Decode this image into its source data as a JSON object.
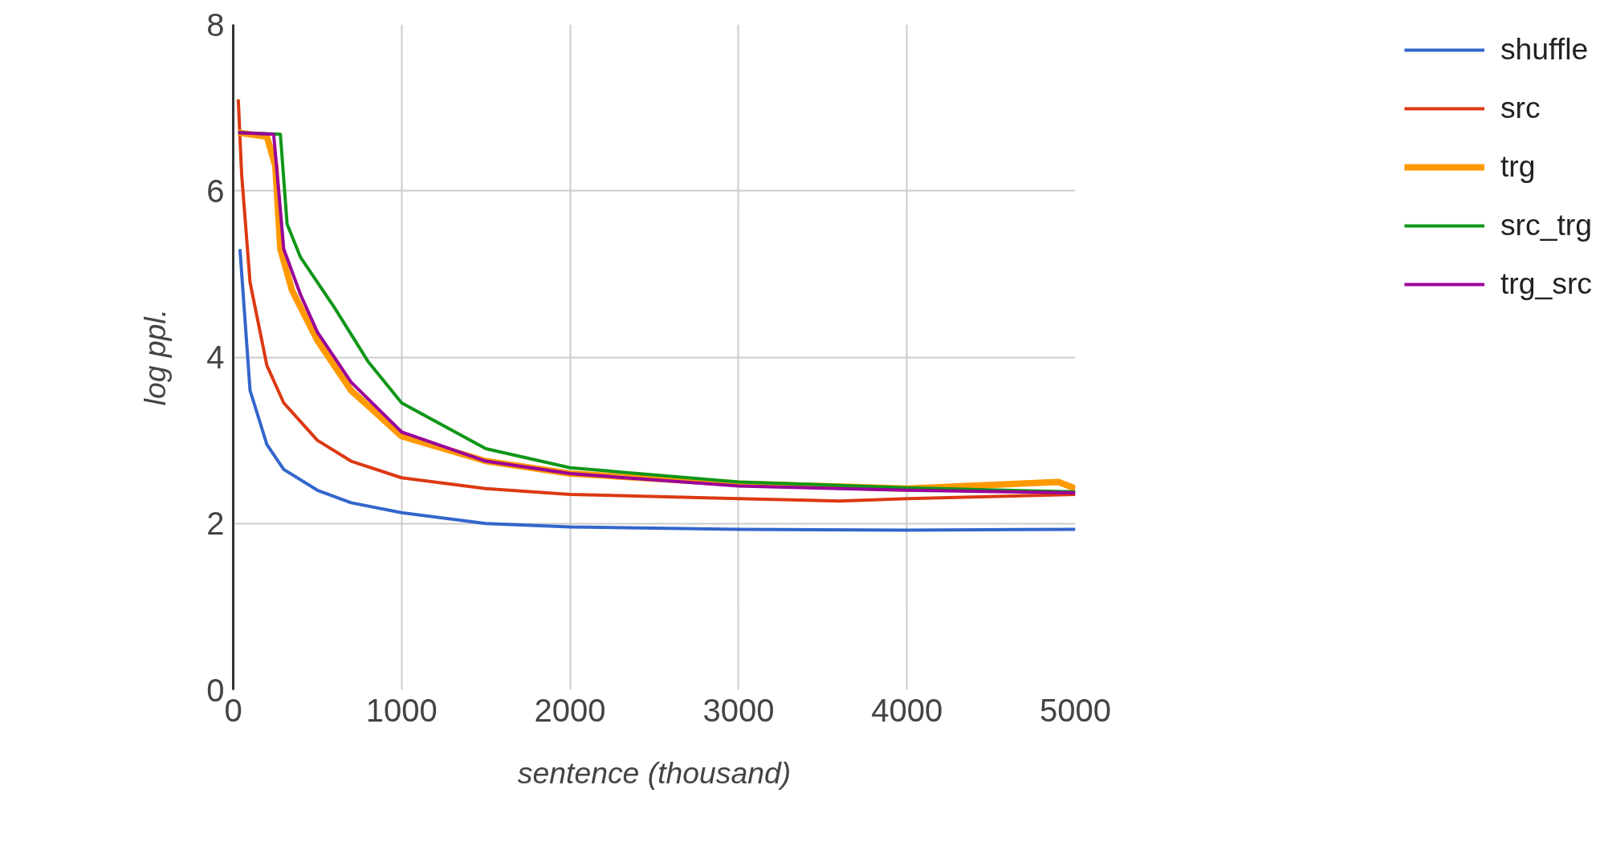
{
  "chart_data": {
    "type": "line",
    "xlabel": "sentence (thousand)",
    "ylabel": "log ppl.",
    "xlim": [
      0,
      5000
    ],
    "ylim": [
      0,
      8
    ],
    "xticks": [
      0,
      1000,
      2000,
      3000,
      4000,
      5000
    ],
    "yticks": [
      0,
      2,
      4,
      6,
      8
    ],
    "grid": true,
    "legend": "right",
    "marker": "none",
    "line_style": "solid",
    "series": [
      {
        "name": "shuffle",
        "color": "#3366cc",
        "x": [
          40,
          100,
          200,
          300,
          500,
          700,
          1000,
          1500,
          2000,
          3000,
          4000,
          5000
        ],
        "values": [
          5.3,
          3.6,
          2.95,
          2.65,
          2.4,
          2.25,
          2.13,
          2.0,
          1.96,
          1.93,
          1.92,
          1.93
        ]
      },
      {
        "name": "src",
        "color": "#dc3912",
        "x": [
          30,
          50,
          100,
          200,
          300,
          500,
          700,
          1000,
          1500,
          2000,
          3000,
          3600,
          4000,
          5000
        ],
        "values": [
          7.1,
          6.2,
          4.9,
          3.9,
          3.45,
          3.0,
          2.75,
          2.55,
          2.42,
          2.35,
          2.3,
          2.27,
          2.3,
          2.35
        ]
      },
      {
        "name": "trg",
        "color": "#ff9900",
        "x": [
          30,
          200,
          250,
          280,
          350,
          500,
          700,
          1000,
          1500,
          2000,
          3000,
          4000,
          4900,
          5000
        ],
        "values": [
          6.7,
          6.65,
          6.3,
          5.3,
          4.8,
          4.2,
          3.6,
          3.05,
          2.75,
          2.6,
          2.48,
          2.42,
          2.5,
          2.42
        ]
      },
      {
        "name": "src_trg",
        "color": "#109618",
        "x": [
          30,
          280,
          320,
          400,
          600,
          800,
          1000,
          1500,
          2000,
          3000,
          4000,
          5000
        ],
        "values": [
          6.7,
          6.68,
          5.6,
          5.2,
          4.6,
          3.95,
          3.45,
          2.9,
          2.67,
          2.5,
          2.43,
          2.38
        ]
      },
      {
        "name": "trg_src",
        "color": "#990099",
        "x": [
          30,
          240,
          270,
          300,
          400,
          500,
          700,
          1000,
          1500,
          2000,
          3000,
          4000,
          5000
        ],
        "values": [
          6.7,
          6.68,
          6.0,
          5.3,
          4.75,
          4.3,
          3.7,
          3.1,
          2.75,
          2.6,
          2.45,
          2.4,
          2.37
        ]
      }
    ]
  }
}
